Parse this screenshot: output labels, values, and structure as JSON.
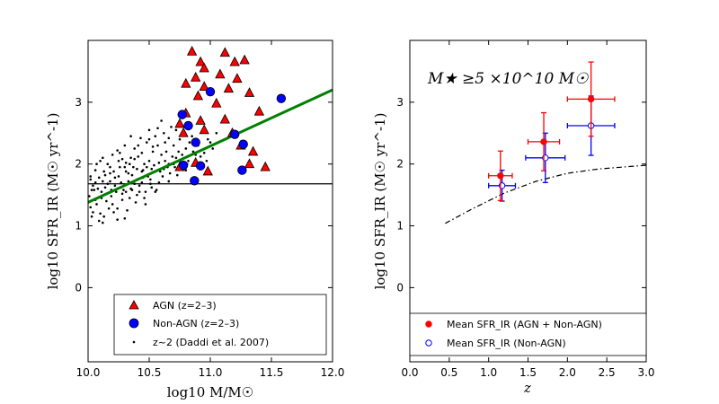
{
  "chart_data": [
    {
      "type": "scatter",
      "xlabel": "log10 M/M☉",
      "ylabel": "log10 SFR_IR (M☉ yr^-1)",
      "xlim": [
        10.0,
        12.0
      ],
      "ylim": [
        -1.2,
        4.0
      ],
      "xticks": [
        "10.0",
        "10.5",
        "11.0",
        "11.5",
        "12.0"
      ],
      "yticks": [
        "0",
        "1",
        "2",
        "3"
      ],
      "hline": 1.68,
      "fit_line": [
        [
          10.0,
          1.38
        ],
        [
          12.0,
          3.2
        ]
      ],
      "legend": {
        "agn": "AGN (z=2–3)",
        "nonagn": "Non-AGN (z=2–3)",
        "daddi": "z~2 (Daddi et al. 2007)"
      },
      "series": [
        {
          "name": "AGN (z=2–3)",
          "points": [
            [
              10.85,
              3.82
            ],
            [
              11.12,
              3.8
            ],
            [
              10.92,
              3.65
            ],
            [
              11.2,
              3.65
            ],
            [
              11.28,
              3.68
            ],
            [
              10.95,
              3.55
            ],
            [
              11.08,
              3.45
            ],
            [
              10.88,
              3.4
            ],
            [
              11.22,
              3.38
            ],
            [
              10.8,
              3.3
            ],
            [
              10.95,
              3.25
            ],
            [
              11.15,
              3.22
            ],
            [
              11.32,
              3.15
            ],
            [
              10.9,
              3.1
            ],
            [
              11.05,
              2.98
            ],
            [
              10.8,
              2.82
            ],
            [
              11.12,
              2.72
            ],
            [
              11.4,
              2.85
            ],
            [
              10.75,
              2.65
            ],
            [
              10.92,
              2.7
            ],
            [
              11.18,
              2.5
            ],
            [
              10.78,
              2.5
            ],
            [
              10.95,
              2.55
            ],
            [
              11.25,
              2.3
            ],
            [
              11.35,
              2.2
            ],
            [
              10.75,
              1.95
            ],
            [
              10.88,
              2.02
            ],
            [
              10.98,
              1.88
            ],
            [
              11.45,
              1.95
            ],
            [
              11.32,
              2.0
            ]
          ]
        },
        {
          "name": "Non-AGN (z=2–3)",
          "points": [
            [
              11.0,
              3.17
            ],
            [
              10.77,
              2.8
            ],
            [
              10.82,
              2.62
            ],
            [
              11.2,
              2.48
            ],
            [
              10.88,
              2.35
            ],
            [
              11.27,
              2.32
            ],
            [
              10.78,
              1.98
            ],
            [
              10.92,
              1.97
            ],
            [
              11.26,
              1.9
            ],
            [
              10.87,
              1.73
            ],
            [
              11.58,
              3.06
            ]
          ]
        },
        {
          "name": "z~2 (Daddi et al. 2007)",
          "points": [
            [
              10.05,
              1.58
            ],
            [
              10.12,
              1.72
            ],
            [
              10.18,
              1.85
            ],
            [
              10.08,
              1.45
            ],
            [
              10.22,
              1.65
            ],
            [
              10.3,
              1.95
            ],
            [
              10.02,
              1.3
            ],
            [
              10.15,
              1.52
            ],
            [
              10.25,
              1.8
            ],
            [
              10.35,
              2.1
            ],
            [
              10.4,
              1.75
            ],
            [
              10.45,
              1.9
            ],
            [
              10.5,
              2.05
            ],
            [
              10.55,
              1.88
            ],
            [
              10.28,
              1.42
            ],
            [
              10.35,
              1.6
            ],
            [
              10.42,
              1.55
            ],
            [
              10.1,
              1.2
            ],
            [
              10.2,
              1.35
            ],
            [
              10.03,
              1.15
            ],
            [
              10.06,
              1.9
            ],
            [
              10.16,
              2.0
            ],
            [
              10.26,
              2.18
            ],
            [
              10.38,
              2.25
            ],
            [
              10.48,
              2.35
            ],
            [
              10.6,
              2.15
            ],
            [
              10.65,
              1.95
            ],
            [
              10.7,
              2.3
            ],
            [
              10.62,
              2.5
            ],
            [
              10.58,
              1.7
            ],
            [
              10.52,
              1.62
            ],
            [
              10.46,
              1.45
            ],
            [
              10.32,
              1.25
            ],
            [
              10.24,
              1.1
            ],
            [
              10.12,
              1.05
            ],
            [
              10.04,
              1.65
            ],
            [
              10.09,
              1.78
            ],
            [
              10.14,
              1.62
            ],
            [
              10.19,
              1.48
            ],
            [
              10.21,
              1.88
            ],
            [
              10.27,
              1.7
            ],
            [
              10.31,
              2.02
            ],
            [
              10.36,
              1.82
            ],
            [
              10.41,
              2.12
            ],
            [
              10.44,
              1.7
            ],
            [
              10.49,
              1.8
            ],
            [
              10.53,
              2.2
            ],
            [
              10.57,
              2.3
            ],
            [
              10.63,
              2.05
            ],
            [
              10.67,
              1.85
            ],
            [
              10.72,
              2.1
            ],
            [
              10.75,
              2.4
            ],
            [
              10.68,
              2.6
            ],
            [
              10.55,
              2.45
            ],
            [
              10.43,
              2.42
            ],
            [
              10.3,
              2.3
            ],
            [
              10.2,
              2.15
            ],
            [
              10.1,
              2.05
            ],
            [
              10.01,
              1.48
            ],
            [
              10.07,
              1.35
            ],
            [
              10.11,
              1.55
            ],
            [
              10.17,
              1.28
            ],
            [
              10.23,
              1.55
            ],
            [
              10.29,
              1.58
            ],
            [
              10.34,
              1.45
            ],
            [
              10.39,
              1.38
            ],
            [
              10.47,
              1.55
            ],
            [
              10.51,
              1.75
            ],
            [
              10.56,
              1.58
            ],
            [
              10.61,
              1.8
            ],
            [
              10.66,
              1.72
            ],
            [
              10.71,
              1.95
            ],
            [
              10.74,
              2.2
            ],
            [
              10.8,
              2.25
            ],
            [
              10.82,
              2.05
            ],
            [
              10.85,
              2.45
            ],
            [
              10.6,
              2.7
            ],
            [
              10.5,
              2.55
            ],
            [
              10.46,
              2.0
            ],
            [
              10.37,
              1.95
            ],
            [
              10.33,
              1.72
            ],
            [
              10.26,
              1.95
            ],
            [
              10.18,
              1.72
            ],
            [
              10.13,
              1.88
            ],
            [
              10.08,
              1.6
            ],
            [
              10.02,
              1.8
            ],
            [
              10.04,
              1.22
            ],
            [
              10.09,
              1.08
            ],
            [
              10.15,
              1.4
            ],
            [
              10.24,
              1.28
            ],
            [
              10.28,
              1.52
            ],
            [
              10.36,
              1.58
            ],
            [
              10.4,
              1.92
            ],
            [
              10.45,
              1.78
            ],
            [
              10.52,
              1.92
            ],
            [
              10.58,
              2.02
            ],
            [
              10.64,
              2.2
            ],
            [
              10.7,
              2.0
            ],
            [
              10.77,
              2.15
            ],
            [
              10.83,
              2.35
            ],
            [
              10.9,
              2.3
            ],
            [
              10.95,
              2.18
            ],
            [
              10.98,
              2.4
            ],
            [
              11.02,
              2.25
            ],
            [
              11.05,
              2.5
            ],
            [
              10.72,
              2.55
            ],
            [
              10.66,
              2.42
            ],
            [
              10.53,
              2.28
            ],
            [
              10.44,
              2.18
            ],
            [
              10.38,
              2.08
            ],
            [
              10.31,
              1.88
            ],
            [
              10.22,
              1.78
            ],
            [
              10.16,
              1.68
            ],
            [
              10.06,
              1.7
            ],
            [
              10.03,
              1.58
            ],
            [
              10.11,
              1.45
            ],
            [
              10.19,
              1.58
            ],
            [
              10.27,
              1.62
            ],
            [
              10.33,
              1.85
            ],
            [
              10.42,
              1.65
            ],
            [
              10.48,
              1.95
            ],
            [
              10.54,
              1.98
            ],
            [
              10.62,
              1.92
            ],
            [
              10.69,
              2.12
            ],
            [
              10.73,
              1.82
            ],
            [
              10.81,
              2.0
            ],
            [
              10.86,
              2.2
            ],
            [
              10.92,
              2.12
            ],
            [
              10.55,
              1.55
            ],
            [
              10.47,
              1.35
            ],
            [
              10.4,
              1.5
            ],
            [
              10.3,
              1.12
            ],
            [
              10.21,
              1.22
            ],
            [
              10.13,
              1.15
            ],
            [
              10.06,
              1.42
            ],
            [
              10.18,
              1.95
            ],
            [
              10.25,
              2.05
            ],
            [
              10.34,
              2.0
            ],
            [
              10.41,
              2.3
            ],
            [
              10.5,
              2.4
            ],
            [
              10.57,
              2.58
            ],
            [
              10.63,
              2.35
            ],
            [
              10.35,
              2.45
            ],
            [
              10.28,
              2.08
            ],
            [
              10.14,
              1.82
            ],
            [
              10.07,
              2.0
            ],
            [
              10.02,
              1.75
            ],
            [
              10.12,
              2.1
            ],
            [
              10.24,
              2.22
            ],
            [
              10.31,
              1.55
            ],
            [
              10.38,
              1.68
            ],
            [
              10.44,
              1.88
            ],
            [
              10.51,
              1.68
            ],
            [
              10.59,
              1.88
            ],
            [
              10.66,
              2.0
            ],
            [
              10.75,
              2.05
            ],
            [
              10.8,
              1.9
            ],
            [
              10.88,
              2.15
            ],
            [
              10.93,
              2.0
            ],
            [
              11.0,
              2.35
            ],
            [
              10.97,
              2.05
            ]
          ]
        }
      ]
    },
    {
      "type": "scatter",
      "annotation": "M★ ≥5 ×10^10 M☉",
      "xlabel": "z",
      "ylabel": "log10 SFR_IR (M☉ yr^-1)",
      "xlim": [
        0.0,
        3.0
      ],
      "ylim": [
        -1.2,
        4.0
      ],
      "xticks": [
        "0.0",
        "0.5",
        "1.0",
        "1.5",
        "2.0",
        "2.5",
        "3.0"
      ],
      "yticks": [
        "0",
        "1",
        "2",
        "3"
      ],
      "legend": {
        "all": "Mean SFR_IR (AGN + Non-AGN)",
        "nonagn": "Mean SFR_IR (Non-AGN)"
      },
      "series": [
        {
          "name": "Mean SFR_IR (AGN + Non-AGN)",
          "color": "#ff0000",
          "points": [
            {
              "x": 1.15,
              "y": 1.81,
              "xerr": 0.15,
              "yerr": 0.4
            },
            {
              "x": 1.7,
              "y": 2.36,
              "xerr": 0.2,
              "yerr": 0.47
            },
            {
              "x": 2.3,
              "y": 3.05,
              "xerr": 0.3,
              "yerr": 0.6
            }
          ]
        },
        {
          "name": "Mean SFR_IR (Non-AGN)",
          "color": "#0000ff",
          "points": [
            {
              "x": 1.17,
              "y": 1.65,
              "xerr": 0.17,
              "yerr": 0.25
            },
            {
              "x": 1.72,
              "y": 2.1,
              "xerr": 0.25,
              "yerr": 0.4
            },
            {
              "x": 2.3,
              "y": 2.62,
              "xerr": 0.3,
              "yerr": 0.48
            }
          ]
        },
        {
          "name": "dash-dot curve",
          "points": [
            [
              0.45,
              1.04
            ],
            [
              0.8,
              1.28
            ],
            [
              1.2,
              1.53
            ],
            [
              1.6,
              1.72
            ],
            [
              2.0,
              1.85
            ],
            [
              2.4,
              1.92
            ],
            [
              2.8,
              1.96
            ],
            [
              3.0,
              1.98
            ]
          ]
        }
      ]
    }
  ]
}
